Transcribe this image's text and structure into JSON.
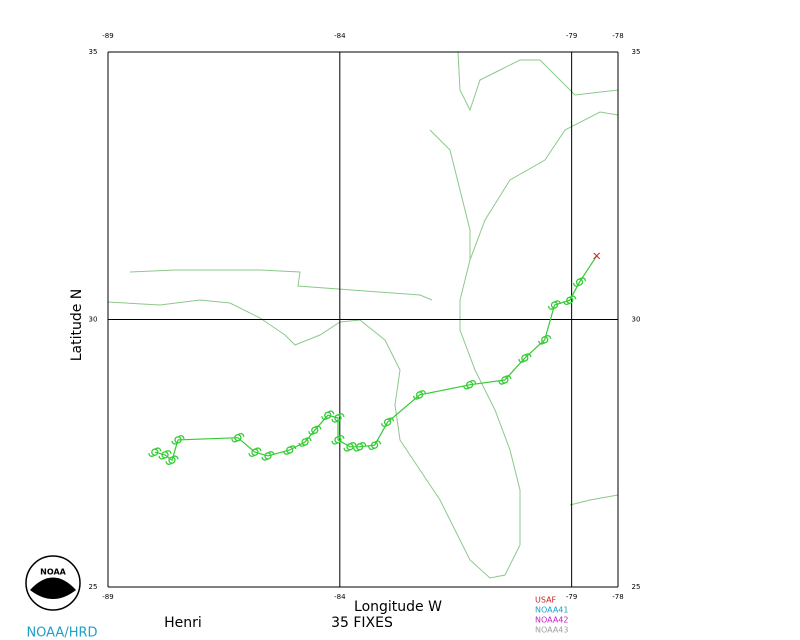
{
  "map": {
    "storm": "Henri",
    "fixes": "35 FIXES",
    "x_label": "Longitude W",
    "y_label": "Latitude N",
    "xlim": [
      -89,
      -78
    ],
    "ylim": [
      25,
      35
    ],
    "xticks": [
      -89,
      -84,
      -79,
      -78
    ],
    "yticks": [
      35,
      30,
      25
    ],
    "track": {
      "color": "#33cc33",
      "lon": [
        -87.99,
        -87.77,
        -87.62,
        -87.49,
        -86.2,
        -85.83,
        -85.55,
        -85.08,
        -84.75,
        -84.54,
        -84.26,
        -84.04,
        -84.04,
        -83.78,
        -83.57,
        -83.25,
        -82.97,
        -82.28,
        -81.2,
        -80.44,
        -80.01,
        -79.58,
        -79.37,
        -79.04,
        -78.83,
        -78.46
      ],
      "lat": [
        27.52,
        27.47,
        27.37,
        27.75,
        27.79,
        27.52,
        27.45,
        27.56,
        27.71,
        27.93,
        28.21,
        28.16,
        27.75,
        27.62,
        27.62,
        27.65,
        28.08,
        28.59,
        28.78,
        28.87,
        29.28,
        29.62,
        30.27,
        30.36,
        30.7,
        31.19
      ]
    },
    "legend": [
      {
        "name": "USAF",
        "color": "#cc2222"
      },
      {
        "name": "NOAA41",
        "color": "#22a0c8"
      },
      {
        "name": "NOAA42",
        "color": "#c822c8"
      },
      {
        "name": "NOAA43",
        "color": "#a0a0a0"
      }
    ],
    "logo": "NOAA",
    "credit": "NOAA/HRD"
  }
}
